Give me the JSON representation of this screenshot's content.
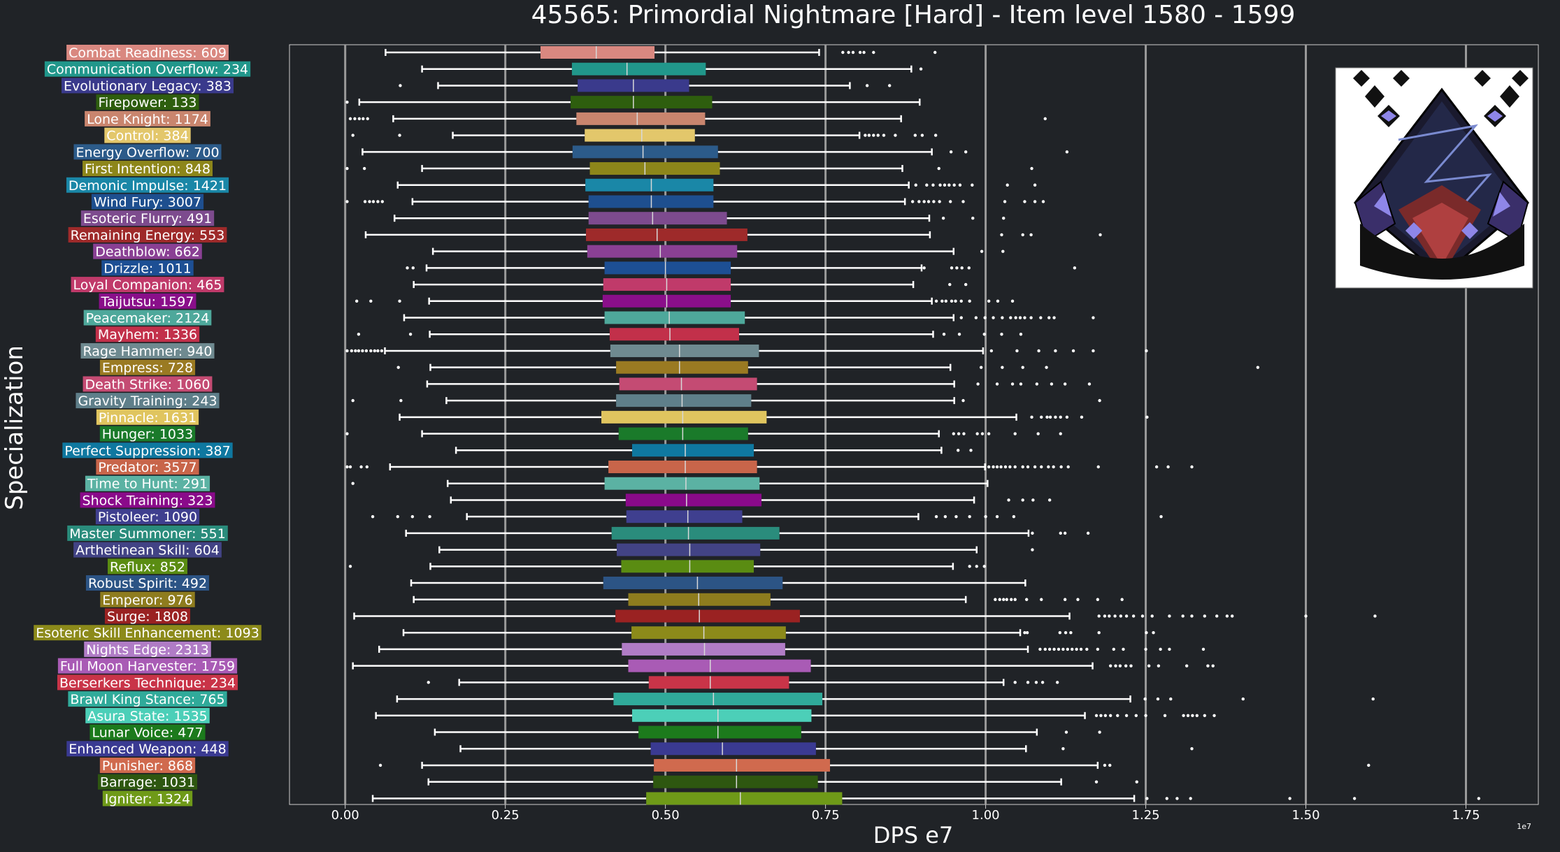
{
  "chart_data": {
    "type": "box",
    "title": "45565: Primordial Nightmare [Hard] - Item level 1580 - 1599",
    "xlabel": "DPS e7",
    "ylabel": "Specialization",
    "x_ticks": [
      0.0,
      0.25,
      0.5,
      0.75,
      1.0,
      1.25,
      1.5,
      1.75
    ],
    "x_tick_labels": [
      "0.00",
      "0.25",
      "0.50",
      "0.75",
      "1.00",
      "1.25",
      "1.50",
      "1.75"
    ],
    "x_offset_label": "1e7",
    "xlim": [
      -0.087,
      1.863
    ],
    "orientation": "horizontal",
    "grid": "vertical lines at major ticks",
    "boss_icon": "primordial-nightmare-boss-art",
    "series": [
      {
        "label": "Combat Readiness: 609",
        "color": "#d98880",
        "whisker_low": 0.063,
        "q1": 0.305,
        "median": 0.392,
        "q3": 0.483,
        "whisker_high": 0.74,
        "outliers": [
          0.777,
          0.786,
          0.793,
          0.804,
          0.81,
          0.825,
          0.921
        ]
      },
      {
        "label": "Communication Overflow: 234",
        "color": "#21978b",
        "whisker_low": 0.12,
        "q1": 0.354,
        "median": 0.44,
        "q3": 0.563,
        "whisker_high": 0.884,
        "outliers": [
          0.899
        ]
      },
      {
        "label": "Evolutionary Legacy: 383",
        "color": "#3a3a8c",
        "whisker_low": 0.145,
        "q1": 0.363,
        "median": 0.45,
        "q3": 0.537,
        "whisker_high": 0.788,
        "outliers": [
          0.086,
          0.815,
          0.85
        ]
      },
      {
        "label": "Firepower: 133",
        "color": "#2e5e0e",
        "whisker_low": 0.022,
        "q1": 0.352,
        "median": 0.45,
        "q3": 0.573,
        "whisker_high": 0.897,
        "outliers": [
          0.003
        ]
      },
      {
        "label": "Lone Knight: 1174",
        "color": "#c9856e",
        "whisker_low": 0.075,
        "q1": 0.361,
        "median": 0.456,
        "q3": 0.562,
        "whisker_high": 0.868,
        "outliers": [
          0.008,
          0.015,
          0.022,
          0.028,
          0.035,
          1.093
        ]
      },
      {
        "label": "Control: 384",
        "color": "#e3c76b",
        "whisker_low": 0.168,
        "q1": 0.374,
        "median": 0.463,
        "q3": 0.546,
        "whisker_high": 0.803,
        "outliers": [
          0.012,
          0.085,
          0.812,
          0.818,
          0.825,
          0.832,
          0.841,
          0.859,
          0.89,
          0.901,
          0.922
        ]
      },
      {
        "label": "Energy Overflow: 700",
        "color": "#2c5b8a",
        "whisker_low": 0.027,
        "q1": 0.355,
        "median": 0.465,
        "q3": 0.582,
        "whisker_high": 0.916,
        "outliers": [
          0.946,
          0.969,
          1.127
        ]
      },
      {
        "label": "First Intention: 848",
        "color": "#8d861a",
        "whisker_low": 0.12,
        "q1": 0.382,
        "median": 0.468,
        "q3": 0.585,
        "whisker_high": 0.87,
        "outliers": [
          0.003,
          0.03,
          0.927,
          1.072
        ]
      },
      {
        "label": "Demonic Impulse: 1421",
        "color": "#1a87a7",
        "whisker_low": 0.082,
        "q1": 0.375,
        "median": 0.478,
        "q3": 0.575,
        "whisker_high": 0.88,
        "outliers": [
          0.891,
          0.908,
          0.918,
          0.929,
          0.936,
          0.943,
          0.951,
          0.96,
          0.979,
          1.034,
          1.077
        ]
      },
      {
        "label": "Wind Fury: 3007",
        "color": "#1e4f8f",
        "whisker_low": 0.105,
        "q1": 0.38,
        "median": 0.478,
        "q3": 0.575,
        "whisker_high": 0.874,
        "outliers": [
          0.003,
          0.031,
          0.038,
          0.044,
          0.051,
          0.058,
          0.886,
          0.896,
          0.904,
          0.911,
          0.919,
          0.928,
          0.945,
          0.965,
          1.03,
          1.061,
          1.077,
          1.09
        ]
      },
      {
        "label": "Esoteric Flurry: 491",
        "color": "#7d4b8e",
        "whisker_low": 0.077,
        "q1": 0.38,
        "median": 0.48,
        "q3": 0.596,
        "whisker_high": 0.912,
        "outliers": [
          0.934,
          0.98,
          1.028
        ]
      },
      {
        "label": "Remaining Energy: 553",
        "color": "#9e2a2a",
        "whisker_low": 0.032,
        "q1": 0.376,
        "median": 0.487,
        "q3": 0.628,
        "whisker_high": 0.913,
        "outliers": [
          1.025,
          1.058,
          1.071,
          1.179
        ]
      },
      {
        "label": "Deathblow: 662",
        "color": "#8a4094",
        "whisker_low": 0.137,
        "q1": 0.378,
        "median": 0.492,
        "q3": 0.612,
        "whisker_high": 0.95,
        "outliers": [
          0.994,
          1.027
        ]
      },
      {
        "label": "Drizzle: 1011",
        "color": "#1d4f94",
        "whisker_low": 0.127,
        "q1": 0.405,
        "median": 0.5,
        "q3": 0.602,
        "whisker_high": 0.9,
        "outliers": [
          0.097,
          0.106,
          0.904,
          0.947,
          0.955,
          0.963,
          0.974,
          1.139
        ]
      },
      {
        "label": "Loyal Companion: 465",
        "color": "#c03a6a",
        "whisker_low": 0.107,
        "q1": 0.403,
        "median": 0.502,
        "q3": 0.602,
        "whisker_high": 0.887,
        "outliers": [
          0.944,
          0.969
        ]
      },
      {
        "label": "Taijutsu: 1597",
        "color": "#8a0f8a",
        "whisker_low": 0.131,
        "q1": 0.402,
        "median": 0.502,
        "q3": 0.602,
        "whisker_high": 0.916,
        "outliers": [
          0.018,
          0.04,
          0.085,
          0.923,
          0.932,
          0.938,
          0.947,
          0.953,
          0.962,
          0.975,
          1.005,
          1.019,
          1.042
        ]
      },
      {
        "label": "Peacemaker: 2124",
        "color": "#4ea89b",
        "whisker_low": 0.092,
        "q1": 0.405,
        "median": 0.506,
        "q3": 0.624,
        "whisker_high": 0.95,
        "outliers": [
          0.962,
          0.985,
          0.999,
          1.012,
          1.026,
          1.039,
          1.047,
          1.054,
          1.061,
          1.071,
          1.086,
          1.099,
          1.107,
          1.168
        ]
      },
      {
        "label": "Mayhem: 1336",
        "color": "#c2304a",
        "whisker_low": 0.132,
        "q1": 0.413,
        "median": 0.507,
        "q3": 0.615,
        "whisker_high": 0.918,
        "outliers": [
          0.021,
          0.102,
          0.935,
          0.959,
          0.998,
          1.025,
          1.055
        ]
      },
      {
        "label": "Rage Hammer: 940",
        "color": "#6f8a90",
        "whisker_low": 0.062,
        "q1": 0.414,
        "median": 0.522,
        "q3": 0.646,
        "whisker_high": 0.996,
        "outliers": [
          0.003,
          0.01,
          0.016,
          0.021,
          0.027,
          0.033,
          0.04,
          0.046,
          0.051,
          0.057,
          1.009,
          1.049,
          1.083,
          1.109,
          1.137,
          1.168,
          1.251
        ]
      },
      {
        "label": "Empress: 728",
        "color": "#9a7a22",
        "whisker_low": 0.133,
        "q1": 0.423,
        "median": 0.522,
        "q3": 0.629,
        "whisker_high": 0.945,
        "outliers": [
          0.083,
          0.993,
          1.026,
          1.058,
          1.095,
          1.425
        ]
      },
      {
        "label": "Death Strike: 1060",
        "color": "#c44b73",
        "whisker_low": 0.128,
        "q1": 0.428,
        "median": 0.525,
        "q3": 0.643,
        "whisker_high": 0.951,
        "outliers": [
          0.988,
          1.018,
          1.042,
          1.055,
          1.08,
          1.103,
          1.124,
          1.162
        ]
      },
      {
        "label": "Gravity Training: 243",
        "color": "#5f7f8a",
        "whisker_low": 0.158,
        "q1": 0.423,
        "median": 0.526,
        "q3": 0.634,
        "whisker_high": 0.951,
        "outliers": [
          0.012,
          0.087,
          0.965,
          1.178
        ]
      },
      {
        "label": "Pinnacle: 1631",
        "color": "#e0c55f",
        "whisker_low": 0.085,
        "q1": 0.4,
        "median": 0.527,
        "q3": 0.658,
        "whisker_high": 1.048,
        "outliers": [
          1.072,
          1.087,
          1.096,
          1.101,
          1.109,
          1.117,
          1.127,
          1.15,
          1.252
        ]
      },
      {
        "label": "Hunger: 1033",
        "color": "#1a7a2a",
        "whisker_low": 0.12,
        "q1": 0.427,
        "median": 0.527,
        "q3": 0.629,
        "whisker_high": 0.927,
        "outliers": [
          0.003,
          0.95,
          0.958,
          0.966,
          0.987,
          0.995,
          1.005,
          1.046,
          1.082,
          1.117
        ]
      },
      {
        "label": "Perfect Suppression: 387",
        "color": "#0f78a0",
        "whisker_low": 0.173,
        "q1": 0.448,
        "median": 0.531,
        "q3": 0.638,
        "whisker_high": 0.931,
        "outliers": [
          0.957,
          0.977
        ]
      },
      {
        "label": "Predator: 3577",
        "color": "#c8654a",
        "whisker_low": 0.07,
        "q1": 0.411,
        "median": 0.531,
        "q3": 0.643,
        "whisker_high": 0.999,
        "outliers": [
          0.003,
          0.008,
          0.025,
          0.034,
          1.005,
          1.012,
          1.018,
          1.024,
          1.031,
          1.038,
          1.046,
          1.058,
          1.066,
          1.077,
          1.087,
          1.098,
          1.106,
          1.118,
          1.129,
          1.176,
          1.267,
          1.285,
          1.322
        ]
      },
      {
        "label": "Time to Hunt: 291",
        "color": "#5bb2a3",
        "whisker_low": 0.16,
        "q1": 0.405,
        "median": 0.532,
        "q3": 0.647,
        "whisker_high": 1.003,
        "outliers": [
          0.012
        ]
      },
      {
        "label": "Shock Training: 323",
        "color": "#8a0a8a",
        "whisker_low": 0.165,
        "q1": 0.438,
        "median": 0.533,
        "q3": 0.65,
        "whisker_high": 0.982,
        "outliers": [
          1.036,
          1.058,
          1.074,
          1.1
        ]
      },
      {
        "label": "Pistoleer: 1090",
        "color": "#3f3f8f",
        "whisker_low": 0.19,
        "q1": 0.439,
        "median": 0.535,
        "q3": 0.62,
        "whisker_high": 0.895,
        "outliers": [
          0.043,
          0.082,
          0.105,
          0.132,
          0.923,
          0.937,
          0.954,
          0.975,
          1.0,
          1.018,
          1.044,
          1.274
        ]
      },
      {
        "label": "Master Summoner: 551",
        "color": "#2a8c7c",
        "whisker_low": 0.095,
        "q1": 0.416,
        "median": 0.536,
        "q3": 0.678,
        "whisker_high": 1.067,
        "outliers": [
          1.073,
          1.117,
          1.124,
          1.16
        ]
      },
      {
        "label": "Arthetinean Skill: 604",
        "color": "#424385",
        "whisker_low": 0.147,
        "q1": 0.424,
        "median": 0.538,
        "q3": 0.648,
        "whisker_high": 0.986,
        "outliers": [
          1.073
        ]
      },
      {
        "label": "Reflux: 852",
        "color": "#5a8c12",
        "whisker_low": 0.133,
        "q1": 0.431,
        "median": 0.538,
        "q3": 0.638,
        "whisker_high": 0.949,
        "outliers": [
          0.008,
          0.975,
          0.986,
          0.998
        ]
      },
      {
        "label": "Robust Spirit: 492",
        "color": "#2c5485",
        "whisker_low": 0.103,
        "q1": 0.403,
        "median": 0.55,
        "q3": 0.683,
        "whisker_high": 1.062,
        "outliers": []
      },
      {
        "label": "Emperor: 976",
        "color": "#8e7c1e",
        "whisker_low": 0.107,
        "q1": 0.442,
        "median": 0.552,
        "q3": 0.664,
        "whisker_high": 0.969,
        "outliers": [
          1.015,
          1.022,
          1.028,
          1.033,
          1.04,
          1.046,
          1.064,
          1.087,
          1.124,
          1.144,
          1.175,
          1.213
        ]
      },
      {
        "label": "Surge: 1808",
        "color": "#9a2222",
        "whisker_low": 0.014,
        "q1": 0.422,
        "median": 0.553,
        "q3": 0.71,
        "whisker_high": 1.131,
        "outliers": [
          1.177,
          1.186,
          1.193,
          1.202,
          1.211,
          1.22,
          1.231,
          1.245,
          1.26,
          1.287,
          1.308,
          1.322,
          1.342,
          1.361,
          1.377,
          1.385,
          1.5,
          1.608
        ]
      },
      {
        "label": "Esoteric Skill Enhancement: 1093",
        "color": "#8c8a1a",
        "whisker_low": 0.091,
        "q1": 0.447,
        "median": 0.56,
        "q3": 0.688,
        "whisker_high": 1.054,
        "outliers": [
          1.061,
          1.065,
          1.116,
          1.125,
          1.133,
          1.177,
          1.251,
          1.262
        ]
      },
      {
        "label": "Nights Edge: 2313",
        "color": "#b07cc6",
        "whisker_low": 0.053,
        "q1": 0.432,
        "median": 0.561,
        "q3": 0.687,
        "whisker_high": 1.066,
        "outliers": [
          1.085,
          1.093,
          1.1,
          1.107,
          1.114,
          1.121,
          1.128,
          1.135,
          1.142,
          1.149,
          1.158,
          1.175,
          1.2,
          1.215,
          1.25,
          1.273,
          1.287,
          1.34
        ]
      },
      {
        "label": "Full Moon Harvester: 1759",
        "color": "#a95bb5",
        "whisker_low": 0.012,
        "q1": 0.442,
        "median": 0.57,
        "q3": 0.727,
        "whisker_high": 1.167,
        "outliers": [
          1.195,
          1.203,
          1.21,
          1.219,
          1.227,
          1.255,
          1.27,
          1.314,
          1.347,
          1.355
        ]
      },
      {
        "label": "Berserkers Technique: 234",
        "color": "#c93448",
        "whisker_low": 0.178,
        "q1": 0.474,
        "median": 0.57,
        "q3": 0.693,
        "whisker_high": 1.028,
        "outliers": [
          0.13,
          1.046,
          1.066,
          1.079,
          1.089,
          1.112
        ]
      },
      {
        "label": "Brawl King Stance: 765",
        "color": "#30aa9a",
        "whisker_low": 0.081,
        "q1": 0.419,
        "median": 0.575,
        "q3": 0.745,
        "whisker_high": 1.226,
        "outliers": [
          1.249,
          1.269,
          1.289,
          1.402,
          1.605
        ]
      },
      {
        "label": "Asura State: 1535",
        "color": "#4ccfb8",
        "whisker_low": 0.048,
        "q1": 0.448,
        "median": 0.582,
        "q3": 0.728,
        "whisker_high": 1.155,
        "outliers": [
          1.173,
          1.18,
          1.187,
          1.195,
          1.206,
          1.22,
          1.235,
          1.25,
          1.28,
          1.309,
          1.316,
          1.323,
          1.33,
          1.342,
          1.357
        ]
      },
      {
        "label": "Lunar Voice: 477",
        "color": "#1c7a1c",
        "whisker_low": 0.14,
        "q1": 0.458,
        "median": 0.582,
        "q3": 0.712,
        "whisker_high": 1.08,
        "outliers": [
          1.126,
          1.178
        ]
      },
      {
        "label": "Enhanced Weapon: 448",
        "color": "#3a3a92",
        "whisker_low": 0.18,
        "q1": 0.477,
        "median": 0.589,
        "q3": 0.735,
        "whisker_high": 1.063,
        "outliers": [
          1.121,
          1.322
        ]
      },
      {
        "label": "Punisher: 868",
        "color": "#d06a4e",
        "whisker_low": 0.12,
        "q1": 0.482,
        "median": 0.611,
        "q3": 0.757,
        "whisker_high": 1.175,
        "outliers": [
          0.055,
          1.186,
          1.194,
          1.598
        ]
      },
      {
        "label": "Barrage: 1031",
        "color": "#2e5710",
        "whisker_low": 0.13,
        "q1": 0.481,
        "median": 0.611,
        "q3": 0.738,
        "whisker_high": 1.118,
        "outliers": [
          1.173,
          1.236
        ]
      },
      {
        "label": "Igniter: 1324",
        "color": "#6f9a18",
        "whisker_low": 0.043,
        "q1": 0.47,
        "median": 0.617,
        "q3": 0.776,
        "whisker_high": 1.232,
        "outliers": [
          1.252,
          1.283,
          1.299,
          1.32,
          1.475,
          1.576,
          1.77
        ]
      }
    ]
  }
}
